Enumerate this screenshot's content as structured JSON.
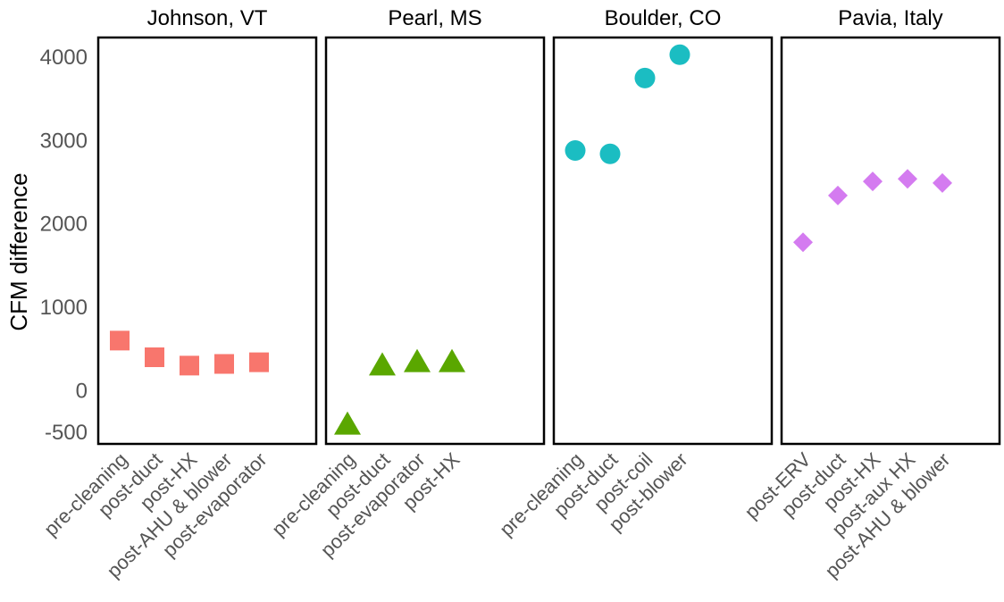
{
  "chart_data": {
    "type": "scatter",
    "ylabel": "CFM difference",
    "ylim": [
      -600,
      4300
    ],
    "yticks": [
      4000,
      3000,
      2000,
      1000,
      0,
      -500
    ],
    "ytick_labels": [
      "4000",
      "3000",
      "2000",
      "1000",
      "0",
      "-500"
    ],
    "grid": false,
    "legend": "none",
    "panels": [
      {
        "title": "Johnson, VT",
        "marker": "square",
        "color": "#f8766d",
        "categories": [
          "pre-cleaning",
          "post-duct",
          "post-HX",
          "post-AHU & blower",
          "post-evaporator"
        ],
        "values": [
          600,
          400,
          300,
          320,
          340
        ]
      },
      {
        "title": "Pearl, MS",
        "marker": "triangle",
        "color": "#5aa700",
        "categories": [
          "pre-cleaning",
          "post-duct",
          "post-evaporator",
          "post-HX"
        ],
        "values": [
          -410,
          300,
          340,
          340
        ]
      },
      {
        "title": "Boulder, CO",
        "marker": "circle",
        "color": "#1bbdc2",
        "categories": [
          "pre-cleaning",
          "post-duct",
          "post-coil",
          "post-blower"
        ],
        "values": [
          2880,
          2840,
          3750,
          4030
        ]
      },
      {
        "title": "Pavia, Italy",
        "marker": "diamond",
        "color": "#d47bf0",
        "categories": [
          "post-ERV",
          "post-duct",
          "post-HX",
          "post-aux HX",
          "post-AHU & blower"
        ],
        "values": [
          1780,
          2340,
          2510,
          2540,
          2490
        ]
      }
    ]
  }
}
